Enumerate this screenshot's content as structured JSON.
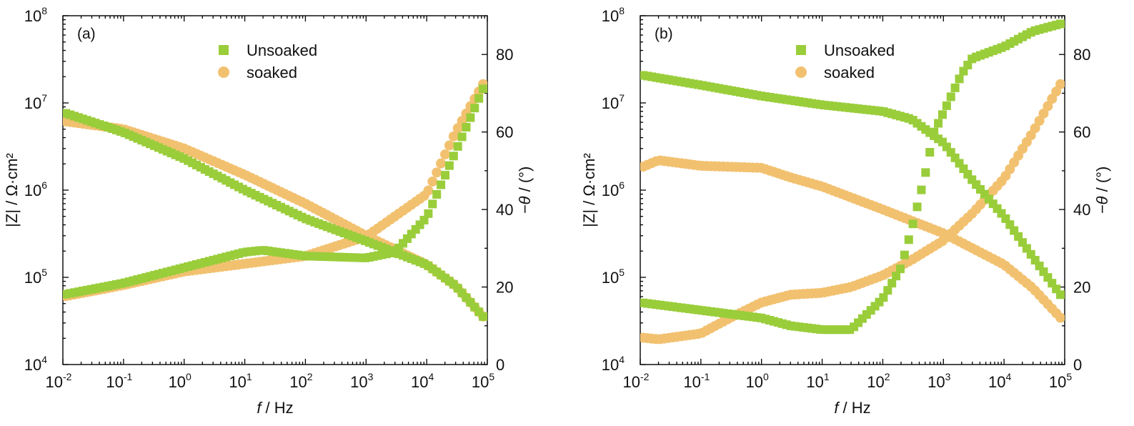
{
  "colors": {
    "unsoaked": "#9ACD3A",
    "soaked": "#F2C170"
  },
  "chart_data": [
    {
      "type": "scatter",
      "panel_label": "(a)",
      "xlabel": "f / Hz",
      "ylabel_left": "|Z| / Ω·cm²",
      "ylabel_right": "−θ / (°)",
      "xscale": "log",
      "xlim": [
        0.01,
        100000
      ],
      "y_left_scale": "log",
      "y_left_lim": [
        10000,
        100000000
      ],
      "y_right_lim": [
        0,
        90
      ],
      "x_tick_labels": [
        "10-2",
        "10-1",
        "100",
        "101",
        "102",
        "103",
        "104",
        "105"
      ],
      "y_left_tick_labels": [
        "104",
        "105",
        "106",
        "107",
        "108"
      ],
      "y_right_tick_labels": [
        "0",
        "20",
        "40",
        "60",
        "80"
      ],
      "legend": {
        "placement": "top-center",
        "entries": [
          "Unsoaked",
          "soaked"
        ]
      },
      "series": [
        {
          "name": "Unsoaked",
          "quantity": "|Z|",
          "axis": "left",
          "marker": "square",
          "x": [
            0.01,
            0.1,
            1,
            10,
            100,
            1000,
            10000,
            30000,
            90000
          ],
          "y": [
            7800000,
            4600000,
            2300000,
            1000000,
            470000,
            260000,
            140000,
            80000,
            34000
          ]
        },
        {
          "name": "Unsoaked",
          "quantity": "-theta",
          "axis": "right",
          "marker": "square",
          "x": [
            0.01,
            0.1,
            1,
            10,
            20,
            100,
            1000,
            3000,
            10000,
            30000,
            90000
          ],
          "y": [
            18,
            21,
            25,
            29,
            29.5,
            28,
            27.5,
            29,
            38,
            55,
            72
          ]
        },
        {
          "name": "soaked",
          "quantity": "|Z|",
          "axis": "left",
          "marker": "circle",
          "x": [
            0.01,
            0.1,
            1,
            10,
            100,
            1000,
            10000,
            30000,
            90000
          ],
          "y": [
            6200000,
            5000000,
            3000000,
            1500000,
            700000,
            300000,
            140000,
            80000,
            34000
          ]
        },
        {
          "name": "soaked",
          "quantity": "-theta",
          "axis": "right",
          "marker": "circle",
          "x": [
            0.01,
            0.1,
            1,
            10,
            100,
            1000,
            10000,
            30000,
            90000
          ],
          "y": [
            17.5,
            20.5,
            24,
            26,
            28,
            33,
            44,
            60,
            73
          ]
        }
      ]
    },
    {
      "type": "scatter",
      "panel_label": "(b)",
      "xlabel": "f / Hz",
      "ylabel_left": "|Z| / Ω·cm²",
      "ylabel_right": "−θ / (°)",
      "xscale": "log",
      "xlim": [
        0.01,
        100000
      ],
      "y_left_scale": "log",
      "y_left_lim": [
        10000,
        100000000
      ],
      "y_right_lim": [
        0,
        90
      ],
      "x_tick_labels": [
        "10-2",
        "10-1",
        "100",
        "101",
        "102",
        "103",
        "104",
        "105"
      ],
      "y_left_tick_labels": [
        "104",
        "105",
        "106",
        "107",
        "108"
      ],
      "y_right_tick_labels": [
        "0",
        "20",
        "40",
        "60",
        "80"
      ],
      "legend": {
        "placement": "top-center",
        "entries": [
          "Unsoaked",
          "soaked"
        ]
      },
      "series": [
        {
          "name": "Unsoaked",
          "quantity": "|Z|",
          "axis": "left",
          "marker": "square",
          "x": [
            0.01,
            0.1,
            1,
            10,
            100,
            300,
            1000,
            3000,
            10000,
            30000,
            90000
          ],
          "y": [
            21000000,
            16000000,
            12000000,
            9500000,
            8000000,
            6500000,
            3500000,
            1300000,
            500000,
            170000,
            60000
          ]
        },
        {
          "name": "Unsoaked",
          "quantity": "-theta",
          "axis": "right",
          "marker": "square",
          "x": [
            0.01,
            0.1,
            1,
            3,
            10,
            30,
            100,
            200,
            300,
            500,
            700,
            1000,
            2000,
            3000,
            10000,
            30000,
            90000
          ],
          "y": [
            16,
            14,
            12,
            10,
            9,
            9,
            17,
            25,
            35,
            49,
            60,
            65,
            75,
            79,
            82,
            86,
            88
          ]
        },
        {
          "name": "soaked",
          "quantity": "|Z|",
          "axis": "left",
          "marker": "circle",
          "x": [
            0.01,
            0.02,
            0.1,
            1,
            3,
            10,
            100,
            1000,
            10000,
            30000,
            90000
          ],
          "y": [
            1800000,
            2200000,
            1900000,
            1800000,
            1400000,
            1100000,
            600000,
            320000,
            140000,
            75000,
            33000
          ]
        },
        {
          "name": "soaked",
          "quantity": "-theta",
          "axis": "right",
          "marker": "circle",
          "x": [
            0.01,
            0.02,
            0.1,
            0.3,
            1,
            3,
            10,
            30,
            100,
            300,
            1000,
            3000,
            10000,
            30000,
            90000
          ],
          "y": [
            7,
            6.5,
            8,
            12,
            16,
            18,
            18.5,
            20,
            23,
            27,
            32,
            39,
            48,
            60,
            73
          ]
        }
      ]
    }
  ]
}
